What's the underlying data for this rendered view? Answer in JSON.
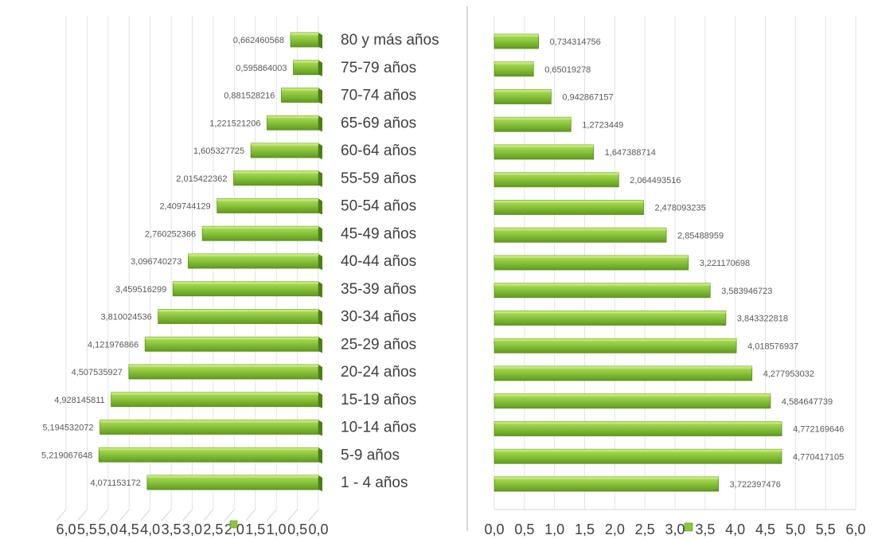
{
  "chart_data": [
    {
      "type": "bar",
      "orientation": "horizontal",
      "direction": "right-to-left",
      "categories": [
        "80 y más años",
        "75-79 años",
        "70-74 años",
        "65-69 años",
        "60-64 años",
        "55-59 años",
        "50-54 años",
        "45-49 años",
        "40-44 años",
        "35-39 años",
        "30-34 años",
        "25-29 años",
        "20-24 años",
        "15-19 años",
        "10-14 años",
        "5-9 años",
        "1 - 4 años"
      ],
      "values": [
        0.662460568,
        0.595864003,
        0.881528216,
        1.221521206,
        1.605327725,
        2.015422362,
        2.409744129,
        2.760252366,
        3.096740273,
        3.459516299,
        3.810024536,
        4.121976866,
        4.507535927,
        4.928145811,
        5.194532072,
        5.219067648,
        4.071153172
      ],
      "value_labels": [
        "0,662460568",
        "0,595864003",
        "0,881528216",
        "1,221521206",
        "1,605327725",
        "2,015422362",
        "2,409744129",
        "2,760252366",
        "3,096740273",
        "3,459516299",
        "3,810024536",
        "4,121976866",
        "4,507535927",
        "4,928145811",
        "5,194532072",
        "5,219067648",
        "4,071153172"
      ],
      "category_labels": [
        "80 y más años",
        "75-79 años",
        "70-74 años",
        "65-69 años",
        "60-64 años",
        "55-59 años",
        "50-54 años",
        "45-49 años",
        "40-44 años",
        "35-39 años",
        "30-34 años",
        "25-29 años",
        "20-24 años",
        "15-19 años",
        "10-14 años",
        "5-9  años",
        "1 - 4 años"
      ],
      "xlim": [
        0,
        6.0
      ],
      "ticks": [
        6.0,
        5.5,
        5.0,
        4.5,
        4.0,
        3.5,
        3.0,
        2.5,
        2.0,
        1.5,
        1.0,
        0.5,
        0.0
      ],
      "tick_labels": [
        "6,0",
        "5,5",
        "5,0",
        "4,5",
        "4,0",
        "3,5",
        "3,0",
        "2,5",
        "2,0",
        "1,5",
        "1,0",
        "0,5",
        "0,0"
      ],
      "grid": true,
      "legend": "bottom",
      "color": "#8cc63f"
    },
    {
      "type": "bar",
      "orientation": "horizontal",
      "direction": "left-to-right",
      "categories": [
        "80 y más años",
        "75-79 años",
        "70-74 años",
        "65-69 años",
        "60-64 años",
        "55-59 años",
        "50-54 años",
        "45-49 años",
        "40-44 años",
        "35-39 años",
        "30-34 años",
        "25-29 años",
        "20-24 años",
        "15-19 años",
        "10-14 años",
        "5-9 años",
        "1 - 4 años"
      ],
      "values": [
        0.734314756,
        0.65019278,
        0.942867157,
        1.2723449,
        1.647388714,
        2.064493516,
        2.478093235,
        2.85488959,
        3.221170698,
        3.583946723,
        3.843322818,
        4.018576937,
        4.277953032,
        4.584647739,
        4.772169646,
        4.770417105,
        3.722397476
      ],
      "value_labels": [
        "0,734314756",
        "0,65019278",
        "0,942867157",
        "1,2723449",
        "1,647388714",
        "2,064493516",
        "2,478093235",
        "2,85488959",
        "3,221170698",
        "3,583946723",
        "3,843322818",
        "4,018576937",
        "4,277953032",
        "4,584647739",
        "4,772169646",
        "4,770417105",
        "3,722397476"
      ],
      "xlim": [
        0,
        6.0
      ],
      "ticks": [
        0.0,
        0.5,
        1.0,
        1.5,
        2.0,
        2.5,
        3.0,
        3.5,
        4.0,
        4.5,
        5.0,
        5.5,
        6.0
      ],
      "tick_labels": [
        "0,0",
        "0,5",
        "1,0",
        "1,5",
        "2,0",
        "2,5",
        "3,0",
        "3,5",
        "4,0",
        "4,5",
        "5,0",
        "5,5",
        "6,0"
      ],
      "grid": true,
      "legend": "bottom",
      "color": "#8cc63f"
    }
  ]
}
